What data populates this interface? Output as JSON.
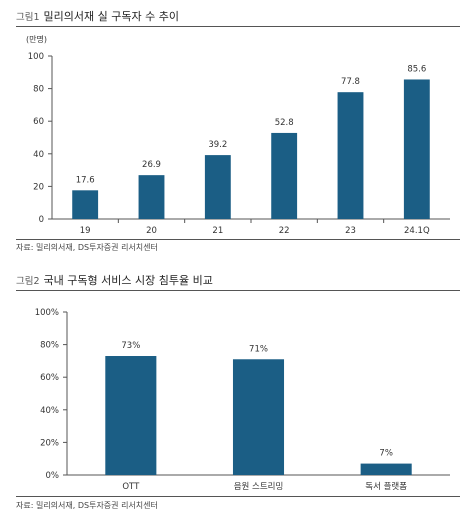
{
  "figure1": {
    "fig_label": "그림1",
    "title": "밀리의서재 실 구독자 수 추이",
    "source": "자료: 밀리의서재, DS투자증권 리서치센터",
    "chart_data": {
      "type": "bar",
      "unit_label": "(만명)",
      "categories": [
        "19",
        "20",
        "21",
        "22",
        "23",
        "24.1Q"
      ],
      "values": [
        17.6,
        26.9,
        39.2,
        52.8,
        77.8,
        85.6
      ],
      "value_labels": [
        "17.6",
        "26.9",
        "39.2",
        "52.8",
        "77.8",
        "85.6"
      ],
      "ylim": [
        0,
        100
      ],
      "yticks": [
        "0",
        "20",
        "40",
        "60",
        "80",
        "100"
      ],
      "bar_color": "#1b5e85",
      "grid": false,
      "legend": "none"
    }
  },
  "figure2": {
    "fig_label": "그림2",
    "title": "국내 구독형 서비스 시장 침투율 비교",
    "source": "자료: 밀리의서재, DS투자증권 리서치센터",
    "chart_data": {
      "type": "bar",
      "categories": [
        "OTT",
        "음원 스트리밍",
        "독서 플랫폼"
      ],
      "values": [
        73,
        71,
        7
      ],
      "value_labels": [
        "73%",
        "71%",
        "7%"
      ],
      "ylim": [
        0,
        100
      ],
      "yticks": [
        "0%",
        "20%",
        "40%",
        "60%",
        "80%",
        "100%"
      ],
      "bar_color": "#1b5e85",
      "grid": false,
      "legend": "none"
    }
  }
}
